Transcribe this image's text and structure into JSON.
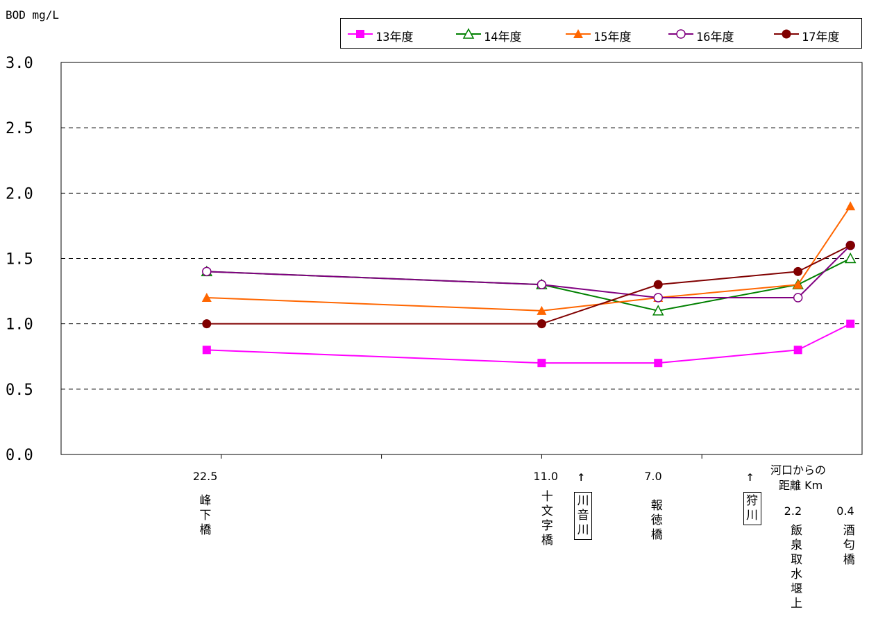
{
  "chart_data": {
    "type": "line",
    "ylabel": "BOD mg/L",
    "ylim": [
      0,
      3
    ],
    "yticks": [
      "3.0",
      "2.5",
      "2.0",
      "1.5",
      "1.0",
      "0.5",
      "0.0"
    ],
    "ytick_values": [
      3.0,
      2.5,
      2.0,
      1.5,
      1.0,
      0.5,
      0.0
    ],
    "x_title_lines": [
      "河口からの",
      "距離 Km"
    ],
    "categories": [
      {
        "distance": "22.5",
        "name": "峰下橋",
        "distance_km": 22.5
      },
      {
        "distance": "11.0",
        "name": "十文字橋",
        "distance_km": 11.0
      },
      {
        "distance": "7.0",
        "name": "報徳橋",
        "distance_km": 7.0
      },
      {
        "distance": "2.2",
        "name": "飯泉取水堰上",
        "distance_km": 2.2
      },
      {
        "distance": "0.4",
        "name": "酒匂橋",
        "distance_km": 0.4
      }
    ],
    "tributaries": [
      {
        "arrow": "↑",
        "name": "川音川",
        "distance_km": 9.6
      },
      {
        "arrow": "↑",
        "name": "狩川",
        "distance_km": 3.8
      }
    ],
    "xlim": [
      27.5,
      0
    ],
    "grid": "horizontal dashed",
    "legend_position": "top",
    "series": [
      {
        "name": "13年度",
        "color": "#ff00ff",
        "marker": "square-filled",
        "values": [
          0.8,
          0.7,
          0.7,
          0.8,
          1.0
        ]
      },
      {
        "name": "14年度",
        "color": "#008000",
        "marker": "triangle-open",
        "values": [
          1.4,
          1.3,
          1.1,
          1.3,
          1.5
        ]
      },
      {
        "name": "15年度",
        "color": "#ff6600",
        "marker": "triangle-filled",
        "values": [
          1.2,
          1.1,
          1.2,
          1.3,
          1.9
        ]
      },
      {
        "name": "16年度",
        "color": "#800080",
        "marker": "circle-open",
        "values": [
          1.4,
          1.3,
          1.2,
          1.2,
          1.6
        ]
      },
      {
        "name": "17年度",
        "color": "#800000",
        "marker": "circle-filled",
        "values": [
          1.0,
          1.0,
          1.3,
          1.4,
          1.6
        ]
      }
    ]
  }
}
